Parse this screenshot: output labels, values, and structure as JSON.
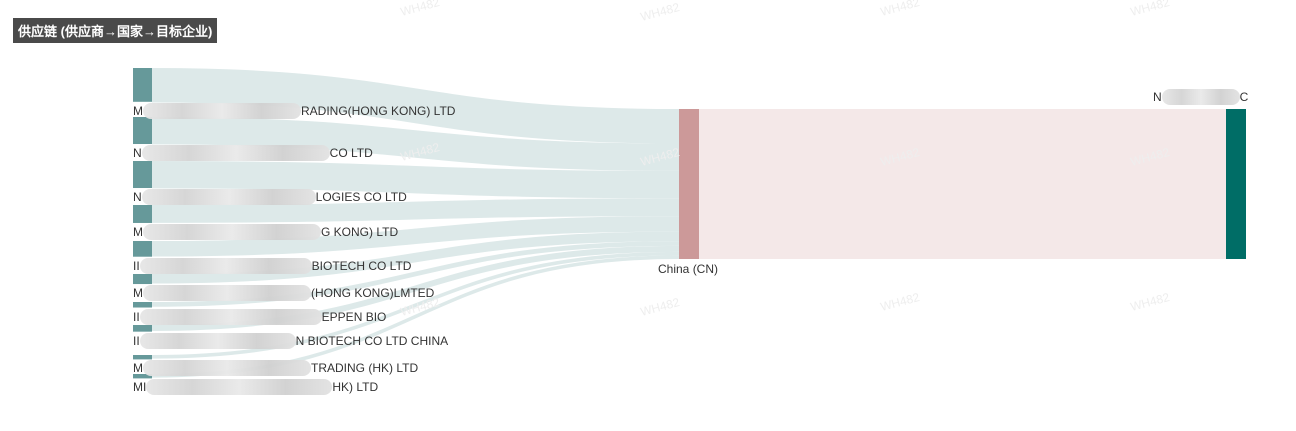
{
  "title": "供应链 (供应商→国家→目标企业)",
  "colors": {
    "supplier_node": "#66999a",
    "country_node": "#cc9999",
    "target_node": "#006d66",
    "link_supplier": "#dde9e9",
    "link_country": "#f4e8e8"
  },
  "watermark": "WH482",
  "chart_data": {
    "type": "sankey",
    "suppliers": [
      {
        "prefix": "M",
        "suffix": "RADING(HONG KONG) LTD",
        "value": 29
      },
      {
        "prefix": "N",
        "suffix": "CO LTD",
        "value": 23
      },
      {
        "prefix": "N",
        "suffix": "LOGIES CO LTD",
        "value": 23
      },
      {
        "prefix": "M",
        "suffix": "G KONG) LTD",
        "value": 15
      },
      {
        "prefix": "II",
        "suffix": "BIOTECH CO LTD",
        "value": 13
      },
      {
        "prefix": "M",
        "suffix": "(HONG KONG)LMTED",
        "value": 8
      },
      {
        "prefix": "II",
        "suffix": "EPPEN BIO",
        "value": 4
      },
      {
        "prefix": "II",
        "suffix": "N BIOTECH CO LTD CHINA",
        "value": 5
      },
      {
        "prefix": "M",
        "suffix": "TRADING (HK) LTD",
        "value": 3
      },
      {
        "prefix": "MI",
        "suffix": "HK) LTD",
        "value": 3
      }
    ],
    "country": {
      "label": "China (CN)"
    },
    "target": {
      "prefix": "N",
      "suffix": "C"
    }
  }
}
